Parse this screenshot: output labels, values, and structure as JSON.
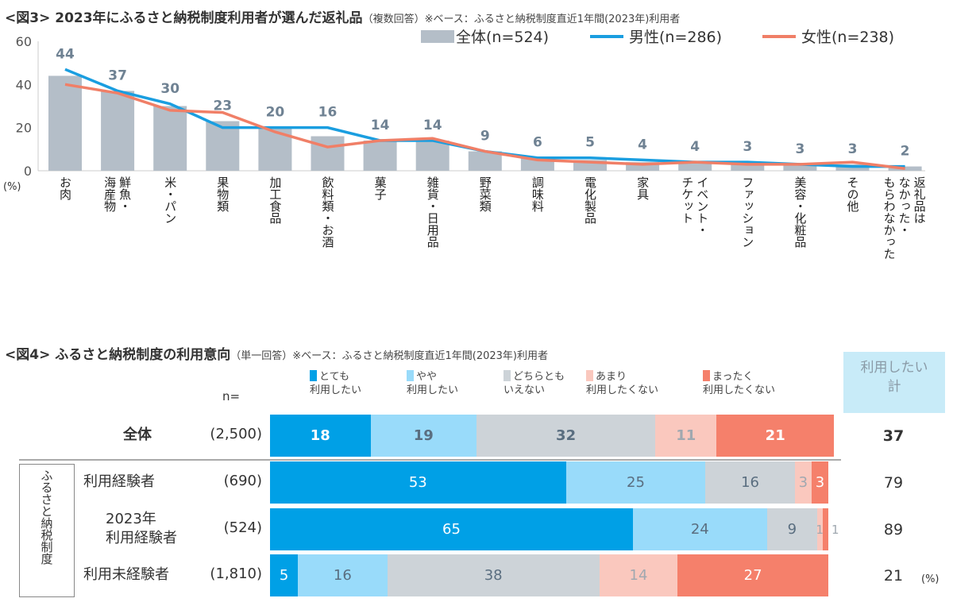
{
  "fig3": {
    "title": "<図3> 2023年にふるさと納税制度利用者が選んだ返礼品",
    "note": "（複数回答）※ベース：ふるさと納税制度直近1年間(2023年)利用者"
  },
  "fig4": {
    "title": "<図4> ふるさと納税制度の利用意向",
    "note": "（単一回答）※ベース：ふるさと納税制度直近1年間(2023年)利用者",
    "n_label": "n=",
    "total_header": "利用したい\n計",
    "group_label": "ふるさと納税制度",
    "unit": "(%)"
  },
  "colors": {
    "bar": "#b4bec8",
    "male": "#1a9ee0",
    "female": "#f07f67",
    "s1": "#00a0e6",
    "s2": "#99dbfa",
    "s3": "#cdd3d8",
    "s4": "#fac8be",
    "s5": "#f5806b",
    "header_bg": "#c8ebf8"
  },
  "chart_data": [
    {
      "type": "bar+line",
      "ylim": [
        0,
        60
      ],
      "yticks": [
        "0",
        "20",
        "40",
        "60"
      ],
      "yunit": "(%)",
      "grid": false,
      "legend": "top-right",
      "categories": [
        "お肉",
        "鮮魚・\n海産物",
        "米・パン",
        "果物類",
        "加工食品",
        "飲料類・お酒",
        "菓子",
        "雑貨・日用品",
        "野菜類",
        "調味料",
        "電化製品",
        "家具",
        "イベント・\nチケット",
        "ファッション",
        "美容・化粧品",
        "その他",
        "返礼品は\nなかった・\nもらわなかった"
      ],
      "series": [
        {
          "name": "全体(n=524)",
          "kind": "bar",
          "values": [
            44,
            37,
            30,
            23,
            20,
            16,
            14,
            14,
            9,
            6,
            5,
            4,
            4,
            3,
            3,
            3,
            2
          ]
        },
        {
          "name": "男性(n=286)",
          "kind": "line",
          "values": [
            47,
            37,
            31,
            20,
            20,
            20,
            14,
            14,
            9,
            6,
            6,
            5,
            4,
            4,
            3,
            2,
            2
          ]
        },
        {
          "name": "女性(n=238)",
          "kind": "line",
          "values": [
            40,
            36,
            28,
            27,
            18,
            11,
            14,
            15,
            9,
            5,
            4,
            3,
            4,
            3,
            3,
            4,
            1
          ]
        }
      ]
    },
    {
      "type": "stacked-bar",
      "legend": [
        "とても\n利用したい",
        "やや\n利用したい",
        "どちらとも\nいえない",
        "あまり\n利用したくない",
        "まったく\n利用したくない"
      ],
      "rows": [
        {
          "label": "全体",
          "n": "(2,500)",
          "values": [
            18,
            19,
            32,
            11,
            21
          ],
          "total": "37"
        },
        {
          "label": "利用経験者",
          "n": "(690)",
          "values": [
            53,
            25,
            16,
            3,
            3
          ],
          "total": "79"
        },
        {
          "label": "2023年\n利用経験者",
          "n": "(524)",
          "values": [
            65,
            24,
            9,
            1,
            1
          ],
          "total": "89"
        },
        {
          "label": "利用未経験者",
          "n": "(1,810)",
          "values": [
            5,
            16,
            38,
            14,
            27
          ],
          "total": "21"
        }
      ]
    }
  ]
}
